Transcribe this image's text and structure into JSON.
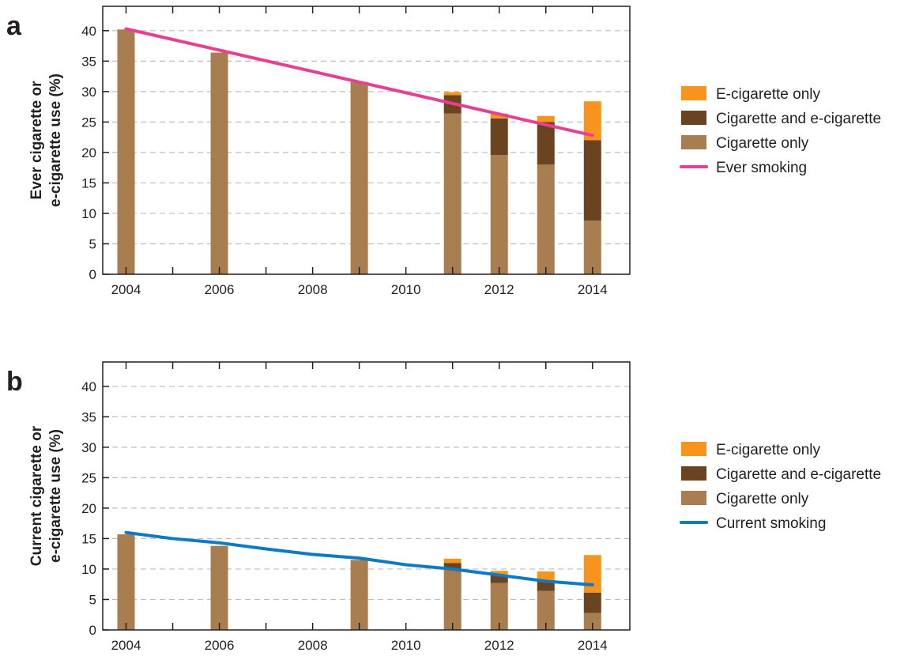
{
  "colors": {
    "cig_only": "#a87d4f",
    "both": "#6a4321",
    "ecig_only": "#f7941d",
    "ever_line": "#e83f91",
    "current_line": "#0f7ac4",
    "grid": "#bdbdbd",
    "axis": "#231f20"
  },
  "chart_data": [
    {
      "panel": "a",
      "type": "bar",
      "stacked": true,
      "ylabel": [
        "Ever cigarette or",
        "e-cigarette use (%)"
      ],
      "xlim": [
        2003.5,
        2014.8
      ],
      "ylim": [
        0,
        44
      ],
      "x_ticks": [
        2004,
        2006,
        2008,
        2010,
        2012,
        2014
      ],
      "y_ticks": [
        0,
        5,
        10,
        15,
        20,
        25,
        30,
        35,
        40
      ],
      "grid": "horizontal dashed",
      "legend_position": "right",
      "legend": [
        "E-cigarette only",
        "Cigarette and e-cigarette",
        "Cigarette only",
        "Ever smoking"
      ],
      "x": [
        2004,
        2006,
        2009,
        2011,
        2012,
        2013,
        2014
      ],
      "series": [
        {
          "name": "Cigarette only",
          "values": [
            40.2,
            36.4,
            31.6,
            26.4,
            19.6,
            18.0,
            8.8
          ]
        },
        {
          "name": "Cigarette and e-cigarette",
          "values": [
            0,
            0,
            0,
            3.0,
            6.0,
            7.0,
            13.2
          ]
        },
        {
          "name": "E-cigarette only",
          "values": [
            0,
            0,
            0,
            0.5,
            0.8,
            1.0,
            6.4
          ]
        }
      ],
      "line": {
        "name": "Ever smoking",
        "x": [
          2004,
          2014
        ],
        "y": [
          40.3,
          22.8
        ]
      }
    },
    {
      "panel": "b",
      "type": "bar",
      "stacked": true,
      "ylabel": [
        "Current cigarette or",
        "e-cigarette use (%)"
      ],
      "xlim": [
        2003.5,
        2014.8
      ],
      "ylim": [
        0,
        44
      ],
      "x_ticks": [
        2004,
        2006,
        2008,
        2010,
        2012,
        2014
      ],
      "y_ticks": [
        0,
        5,
        10,
        15,
        20,
        25,
        30,
        35,
        40
      ],
      "grid": "horizontal dashed",
      "legend_position": "right",
      "legend": [
        "E-cigarette only",
        "Cigarette and e-cigarette",
        "Cigarette only",
        "Current smoking"
      ],
      "x": [
        2004,
        2006,
        2009,
        2011,
        2012,
        2013,
        2014
      ],
      "series": [
        {
          "name": "Cigarette only",
          "values": [
            15.7,
            13.8,
            11.5,
            10.0,
            7.7,
            6.4,
            2.8
          ]
        },
        {
          "name": "Cigarette and e-cigarette",
          "values": [
            0,
            0,
            0,
            1.0,
            1.4,
            1.6,
            3.3
          ]
        },
        {
          "name": "E-cigarette only",
          "values": [
            0,
            0,
            0,
            0.7,
            0.6,
            1.6,
            6.2
          ]
        }
      ],
      "line": {
        "name": "Current smoking",
        "x": [
          2004,
          2005,
          2006,
          2007,
          2008,
          2009,
          2010,
          2011,
          2012,
          2013,
          2014
        ],
        "y": [
          16.0,
          15.0,
          14.3,
          13.3,
          12.4,
          11.8,
          10.7,
          10.0,
          9.0,
          8.0,
          7.4
        ]
      }
    }
  ]
}
